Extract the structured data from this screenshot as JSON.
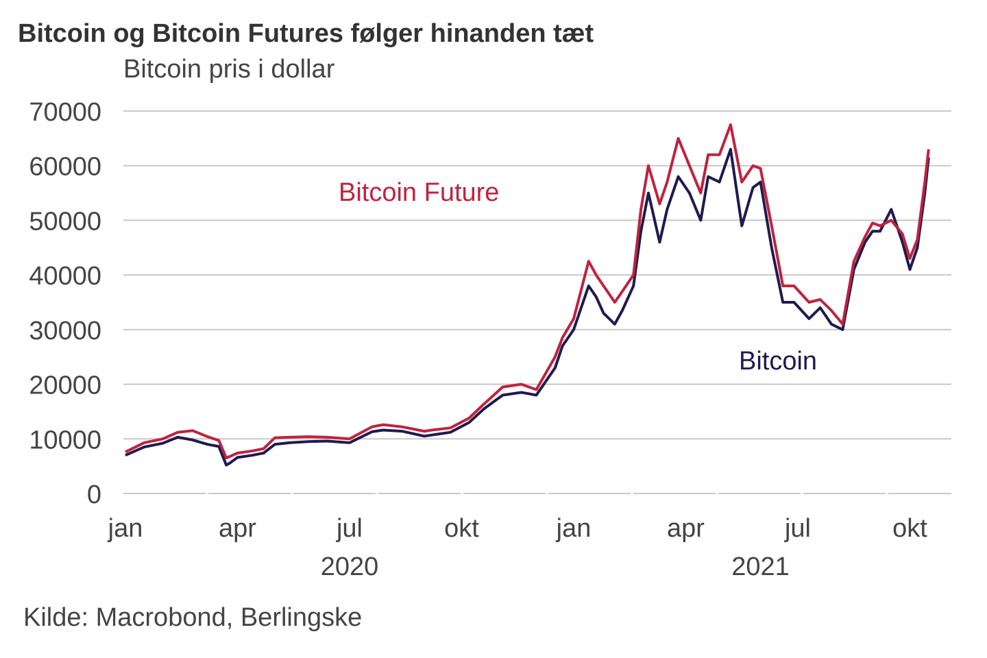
{
  "chart_data": {
    "type": "line",
    "title": "Bitcoin og Bitcoin Futures følger hinanden tæt",
    "ylabel": "Bitcoin pris i dollar",
    "source": "Kilde: Macrobond, Berlingske",
    "ylim": [
      0,
      70000
    ],
    "yticks": [
      0,
      10000,
      20000,
      30000,
      40000,
      50000,
      60000,
      70000
    ],
    "x_unit": "months since jan 2020",
    "xlim": [
      0,
      21.7
    ],
    "xticks": [
      {
        "m": 0,
        "label": "jan"
      },
      {
        "m": 3,
        "label": "apr"
      },
      {
        "m": 6,
        "label": "jul"
      },
      {
        "m": 9,
        "label": "okt"
      },
      {
        "m": 12,
        "label": "jan"
      },
      {
        "m": 15,
        "label": "apr"
      },
      {
        "m": 18,
        "label": "jul"
      },
      {
        "m": 21,
        "label": "okt"
      }
    ],
    "years": [
      {
        "m": 6,
        "label": "2020"
      },
      {
        "m": 17,
        "label": "2021"
      }
    ],
    "grid": true,
    "colors": {
      "bitcoin": "#1f1a4f",
      "future": "#c0223f",
      "grid": "#c8c8c8"
    },
    "x": [
      0,
      0.5,
      1,
      1.4,
      1.8,
      2.2,
      2.5,
      2.7,
      2.8,
      3.0,
      3.4,
      3.7,
      4.0,
      4.4,
      4.9,
      5.4,
      6.0,
      6.6,
      6.9,
      7.4,
      8.0,
      8.2,
      8.7,
      9.2,
      9.6,
      10.1,
      10.6,
      11.0,
      11.5,
      11.7,
      12.0,
      12.4,
      12.6,
      12.8,
      13.1,
      13.3,
      13.6,
      13.8,
      14.0,
      14.3,
      14.5,
      14.8,
      15.1,
      15.4,
      15.6,
      15.9,
      16.2,
      16.5,
      16.8,
      17.0,
      17.3,
      17.6,
      17.9,
      18.3,
      18.6,
      18.9,
      19.2,
      19.5,
      19.8,
      20.0,
      20.2,
      20.5,
      20.8,
      21.0,
      21.2,
      21.4,
      21.5
    ],
    "series": [
      {
        "name": "Bitcoin",
        "values": [
          7000,
          8500,
          9200,
          10300,
          9800,
          9000,
          8600,
          5200,
          5600,
          6600,
          7000,
          7400,
          9000,
          9300,
          9500,
          9600,
          9300,
          11300,
          11600,
          11400,
          10500,
          10700,
          11200,
          13000,
          15500,
          18000,
          18500,
          18000,
          23000,
          27000,
          30000,
          38000,
          36000,
          33000,
          31000,
          33500,
          38000,
          48000,
          55000,
          46000,
          52000,
          58000,
          55000,
          50000,
          58000,
          57000,
          63000,
          49000,
          56000,
          57000,
          45000,
          35000,
          35000,
          32000,
          34000,
          31000,
          30000,
          41000,
          46000,
          48000,
          48000,
          52000,
          46000,
          41000,
          45000,
          55000,
          61500
        ]
      },
      {
        "name": "Bitcoin Future",
        "values": [
          7600,
          9300,
          10000,
          11200,
          11500,
          10400,
          9700,
          6500,
          6800,
          7400,
          7800,
          8200,
          10200,
          10300,
          10400,
          10300,
          10000,
          12200,
          12600,
          12200,
          11400,
          11600,
          12000,
          13800,
          16400,
          19500,
          20000,
          19000,
          25000,
          28500,
          32000,
          42500,
          40000,
          38000,
          35000,
          37000,
          40000,
          52000,
          60000,
          53000,
          57000,
          65000,
          60000,
          55000,
          62000,
          62000,
          67500,
          57000,
          60000,
          59500,
          49000,
          38000,
          38000,
          35000,
          35500,
          33500,
          31000,
          42500,
          47000,
          49500,
          49000,
          50000,
          47500,
          43000,
          46500,
          57000,
          63000
        ]
      }
    ],
    "annotations": [
      {
        "text": "Bitcoin Future",
        "series": "Bitcoin Future"
      },
      {
        "text": "Bitcoin",
        "series": "Bitcoin"
      }
    ]
  }
}
